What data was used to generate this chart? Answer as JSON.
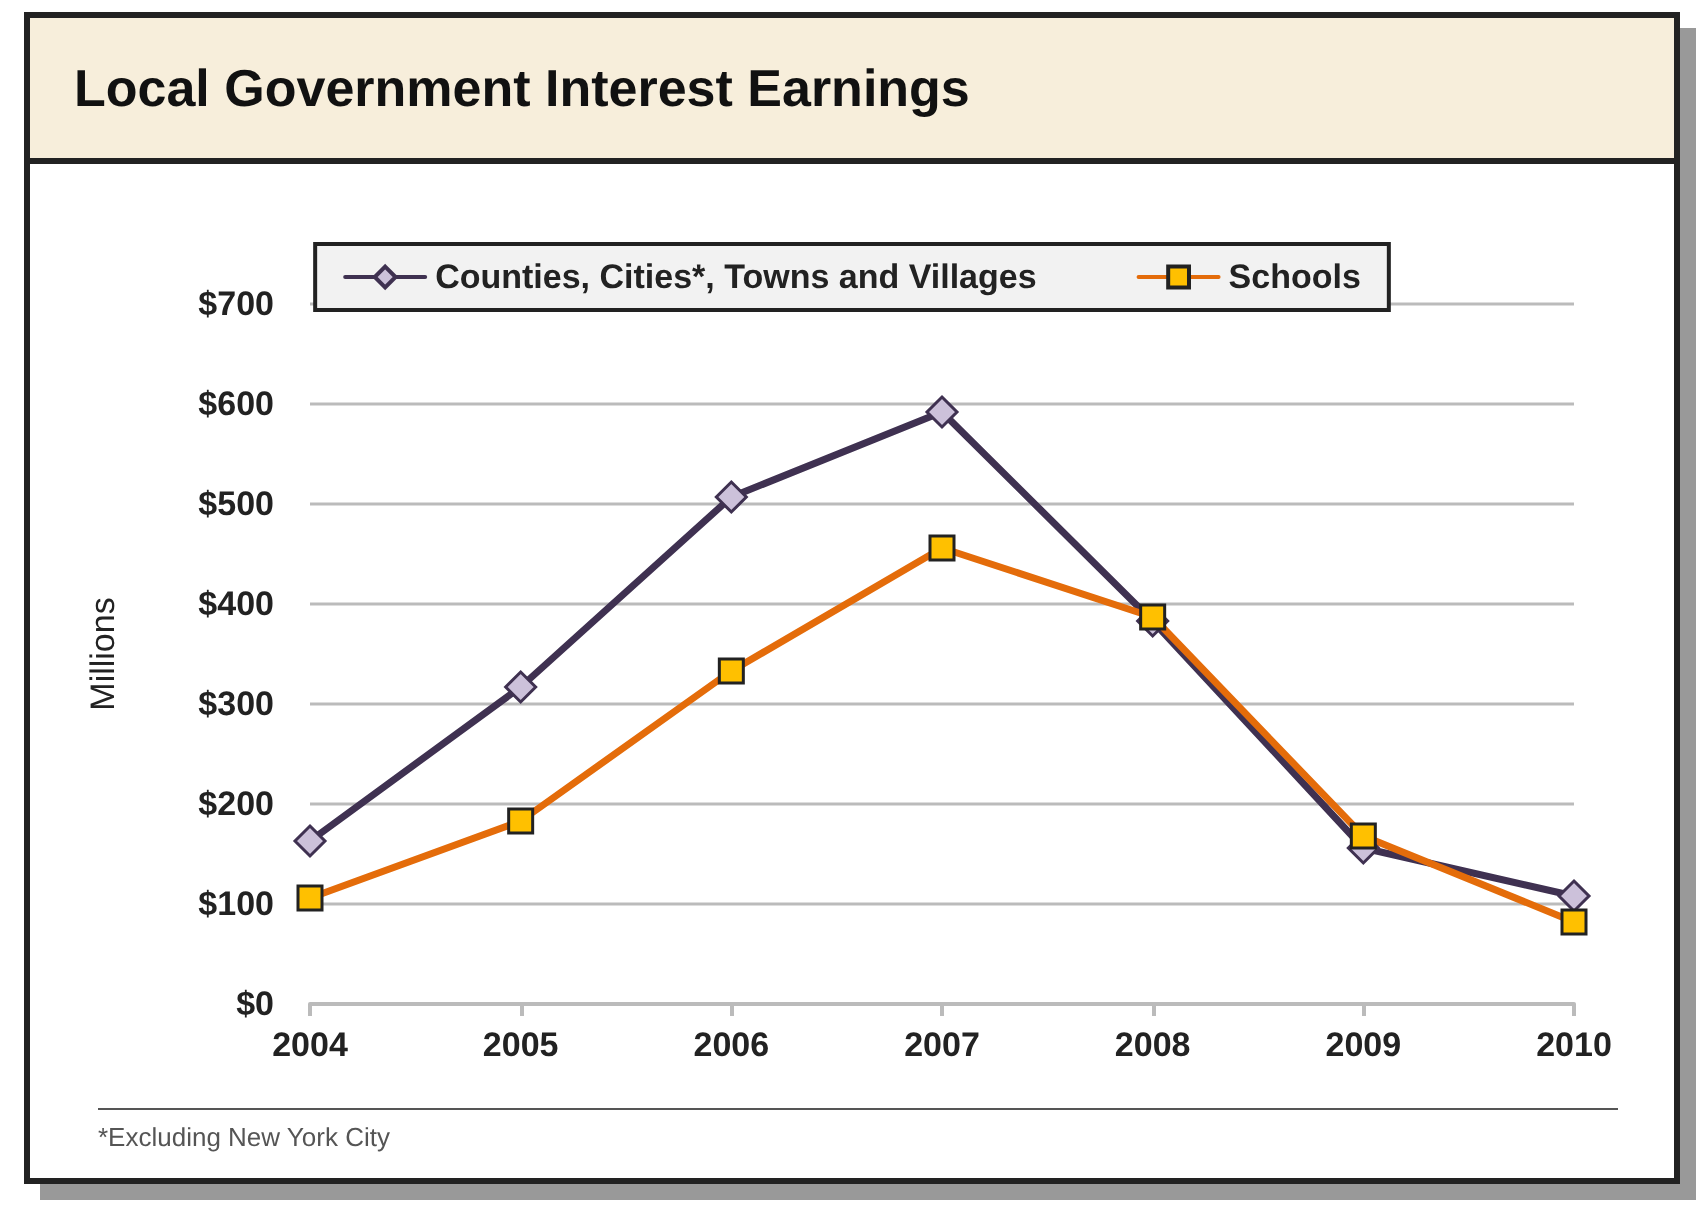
{
  "chart_data": {
    "type": "line",
    "title": "Local Government Interest Earnings",
    "ylabel": "Millions",
    "categories": [
      "2004",
      "2005",
      "2006",
      "2007",
      "2008",
      "2009",
      "2010"
    ],
    "series": [
      {
        "name": "Counties, Cities*, Towns and Villages",
        "color": "#3f3151",
        "marker": "diamond",
        "values": [
          163,
          317,
          507,
          592,
          383,
          156,
          108
        ]
      },
      {
        "name": "Schools",
        "color": "#e46c0a",
        "marker": "square",
        "values": [
          106,
          183,
          333,
          456,
          387,
          168,
          82
        ]
      }
    ],
    "ylim": [
      0,
      700
    ],
    "yticks": [
      {
        "value": 0,
        "label": "$0"
      },
      {
        "value": 100,
        "label": "$100"
      },
      {
        "value": 200,
        "label": "$200"
      },
      {
        "value": 300,
        "label": "$300"
      },
      {
        "value": 400,
        "label": "$400"
      },
      {
        "value": 500,
        "label": "$500"
      },
      {
        "value": 600,
        "label": "$600"
      },
      {
        "value": 700,
        "label": "$700"
      }
    ],
    "grid": "y",
    "legend": "top",
    "line_style": "solid",
    "annotations": [
      "*Excluding New York City"
    ]
  }
}
